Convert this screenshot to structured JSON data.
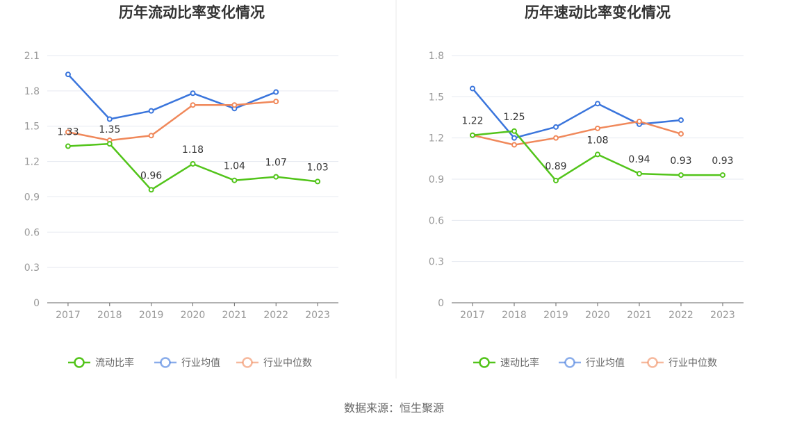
{
  "colors": {
    "company": "#52c41a",
    "industry_avg": "#3a75dc",
    "industry_median": "#f0885a",
    "axis": "#666666",
    "grid": "#e6e9f0",
    "divider": "#e8e8e8"
  },
  "source": "数据来源：恒生聚源",
  "chart_data": [
    {
      "type": "line",
      "title": "历年流动比率变化情况",
      "categories": [
        "2017",
        "2018",
        "2019",
        "2020",
        "2021",
        "2022",
        "2023"
      ],
      "ylim": [
        0,
        2.1
      ],
      "yticks": [
        "0",
        "0.3",
        "0.6",
        "0.9",
        "1.2",
        "1.5",
        "1.8",
        "2.1"
      ],
      "grid": true,
      "legend_position": "bottom",
      "series": [
        {
          "name": "流动比率",
          "color_key": "company",
          "labels": [
            "1.33",
            "1.35",
            "0.96",
            "1.18",
            "1.04",
            "1.07",
            "1.03"
          ],
          "values": [
            1.33,
            1.35,
            0.96,
            1.18,
            1.04,
            1.07,
            1.03
          ]
        },
        {
          "name": "行业均值",
          "color_key": "industry_avg",
          "values": [
            1.94,
            1.56,
            1.63,
            1.78,
            1.65,
            1.79,
            null
          ]
        },
        {
          "name": "行业中位数",
          "color_key": "industry_median",
          "values": [
            1.45,
            1.38,
            1.42,
            1.68,
            1.68,
            1.71,
            null
          ]
        }
      ]
    },
    {
      "type": "line",
      "title": "历年速动比率变化情况",
      "categories": [
        "2017",
        "2018",
        "2019",
        "2020",
        "2021",
        "2022",
        "2023"
      ],
      "ylim": [
        0,
        1.8
      ],
      "yticks": [
        "0",
        "0.3",
        "0.6",
        "0.9",
        "1.2",
        "1.5",
        "1.8"
      ],
      "grid": true,
      "legend_position": "bottom",
      "series": [
        {
          "name": "速动比率",
          "color_key": "company",
          "labels": [
            "1.22",
            "1.25",
            "0.89",
            "1.08",
            "0.94",
            "0.93",
            "0.93"
          ],
          "values": [
            1.22,
            1.25,
            0.89,
            1.08,
            0.94,
            0.93,
            0.93
          ]
        },
        {
          "name": "行业均值",
          "color_key": "industry_avg",
          "values": [
            1.56,
            1.2,
            1.28,
            1.45,
            1.3,
            1.33,
            null
          ]
        },
        {
          "name": "行业中位数",
          "color_key": "industry_median",
          "values": [
            1.22,
            1.15,
            1.2,
            1.27,
            1.32,
            1.23,
            null
          ]
        }
      ]
    }
  ]
}
